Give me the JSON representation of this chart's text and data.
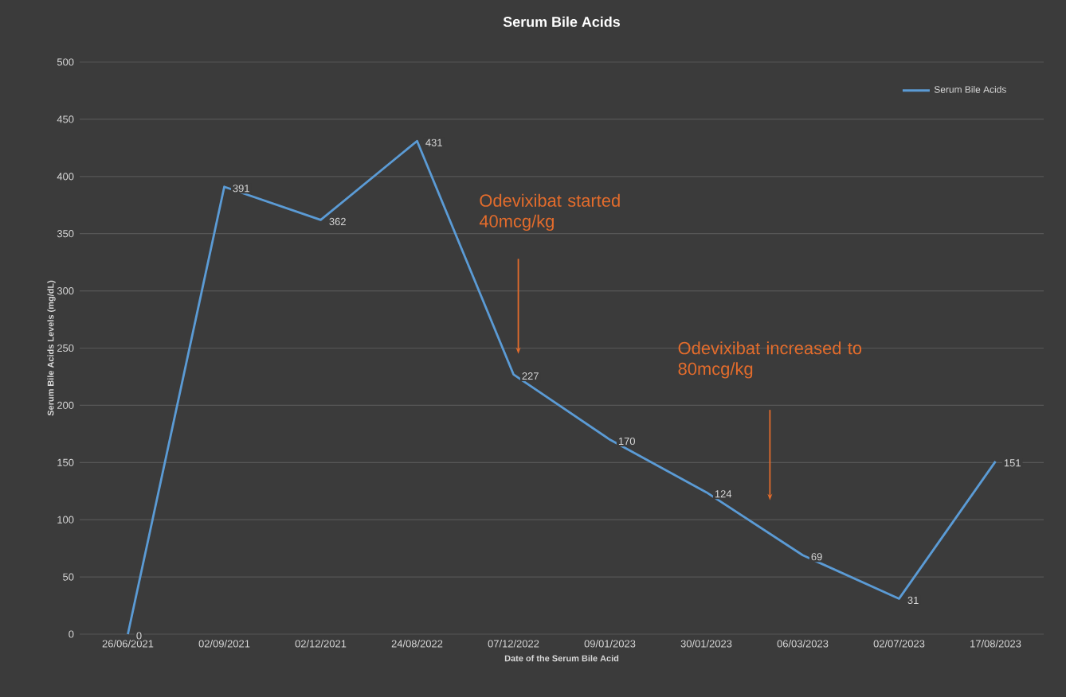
{
  "chart_data": {
    "type": "line",
    "title": "Serum Bile Acids",
    "xlabel": "Date of the Serum Bile Acid",
    "ylabel": "Serum Bile Acids Levels (mg/dL)",
    "categories": [
      "26/06/2021",
      "02/09/2021",
      "02/12/2021",
      "24/08/2022",
      "07/12/2022",
      "09/01/2023",
      "30/01/2023",
      "06/03/2023",
      "02/07/2023",
      "17/08/2023"
    ],
    "series": [
      {
        "name": "Serum Bile Acids",
        "color": "#5b9bd5",
        "values": [
          0,
          391,
          362,
          431,
          227,
          170,
          124,
          69,
          31,
          151
        ]
      }
    ],
    "ylim": [
      0,
      500
    ],
    "yticks": [
      0,
      50,
      100,
      150,
      200,
      250,
      300,
      350,
      400,
      450,
      500
    ],
    "grid": "y",
    "legend": "top right",
    "data_labels": true,
    "marker": "none",
    "line_style": "solid",
    "annotations": [
      "Odevixibat started 40mcg/kg",
      "Odevixibat increased to 80mcg/kg"
    ]
  }
}
